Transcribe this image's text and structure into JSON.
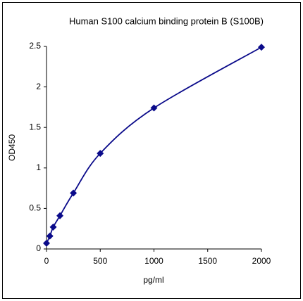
{
  "chart_data": {
    "type": "scatter",
    "title": "Human S100 calcium binding protein B (S100B)",
    "x_label": "pg/ml",
    "y_label": "OD450",
    "x": [
      0,
      31.25,
      62.5,
      125,
      250,
      500,
      1000,
      2000
    ],
    "values": [
      0.07,
      0.16,
      0.27,
      0.41,
      0.69,
      1.18,
      1.74,
      2.49
    ],
    "color": "#0a0a8a",
    "marker": "diamond",
    "smooth_line": true,
    "xlim": [
      0,
      2000
    ],
    "xticks": [
      0,
      500,
      1000,
      1500,
      2000
    ],
    "ylim": [
      0,
      2.5
    ],
    "yticks": [
      0,
      0.5,
      1,
      1.5,
      2,
      2.5
    ]
  }
}
